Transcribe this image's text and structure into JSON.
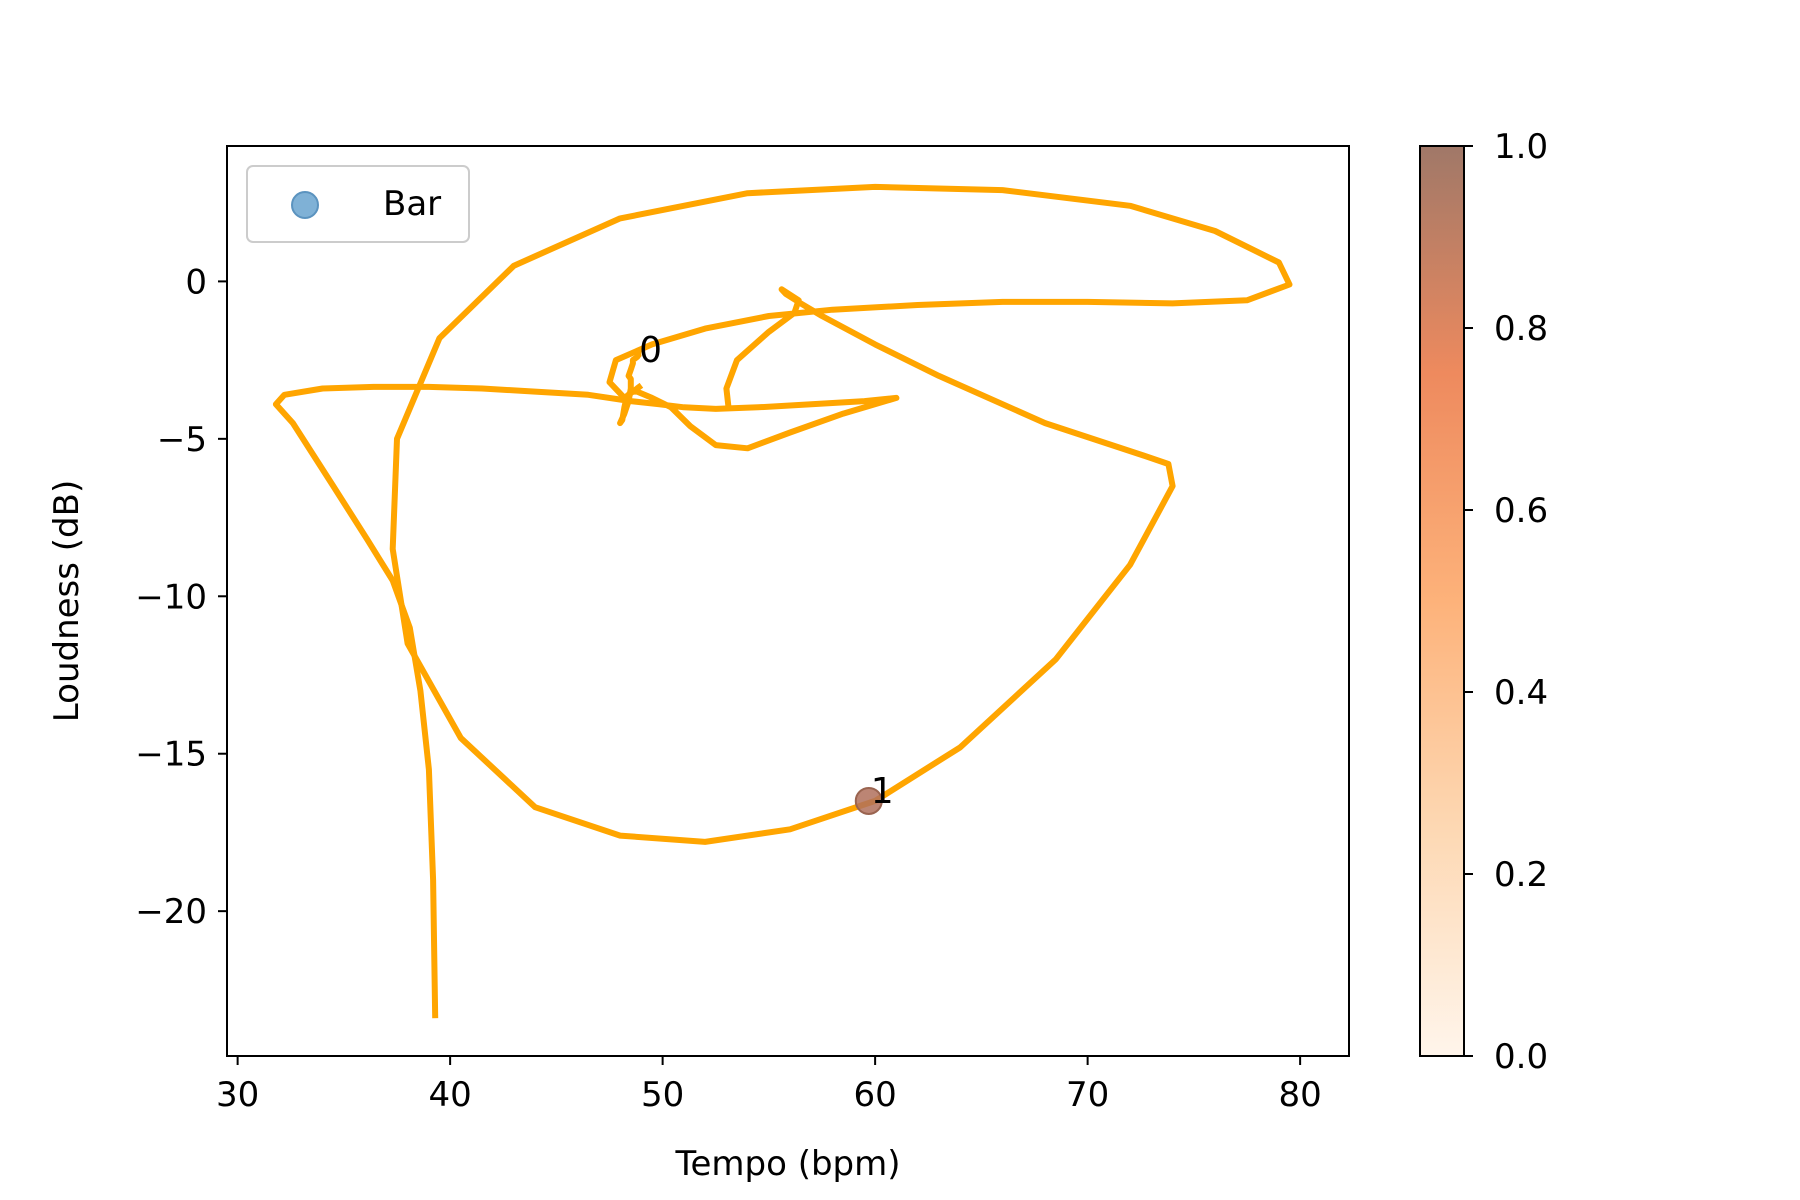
{
  "chart_data": {
    "type": "line",
    "xlabel": "Tempo (bpm)",
    "ylabel": "Loudness (dB)",
    "xlim": [
      29.5,
      82.3
    ],
    "ylim": [
      -24.6,
      4.3
    ],
    "xticks": [
      30,
      40,
      50,
      60,
      70,
      80
    ],
    "yticks": [
      0,
      -5,
      -10,
      -15,
      -20
    ],
    "grid": false,
    "line_color": "#FFA500",
    "series": [
      {
        "type": "line",
        "x": [
          39.3,
          39.2,
          39.0,
          38.6,
          38.1,
          37.3,
          36.1,
          34.5,
          32.6,
          31.8,
          32.2,
          34.0,
          36.4,
          39.0,
          41.5,
          44.0,
          46.5,
          48.5,
          49.8,
          51.0,
          52.5,
          54.5,
          57.0,
          59.5,
          61.0,
          58.5,
          56.0,
          54.0,
          52.5,
          51.3,
          50.4,
          49.5,
          48.8,
          48.5,
          48.3,
          48.2,
          48.1,
          48.0,
          48.2,
          48.4,
          48.5,
          48.5,
          48.4,
          48.5,
          48.6,
          48.6,
          48.8,
          48.9,
          49.0
        ],
        "y": [
          -23.4,
          -19.0,
          -15.5,
          -13.0,
          -11.0,
          -9.5,
          -8.2,
          -6.5,
          -4.5,
          -3.9,
          -3.6,
          -3.4,
          -3.35,
          -3.35,
          -3.4,
          -3.5,
          -3.6,
          -3.8,
          -3.9,
          -4.0,
          -4.05,
          -4.0,
          -3.9,
          -3.8,
          -3.7,
          -4.2,
          -4.8,
          -5.3,
          -5.2,
          -4.6,
          -4.0,
          -3.7,
          -3.5,
          -3.5,
          -3.7,
          -4.0,
          -4.4,
          -4.5,
          -4.2,
          -3.8,
          -3.4,
          -3.1,
          -3.0,
          -2.8,
          -2.6,
          -2.5,
          -2.4,
          -2.3,
          -2.3
        ]
      },
      {
        "type": "line",
        "x": [
          49.0,
          48.2,
          47.5,
          47.8,
          49.5,
          52.0,
          55.0,
          58.0,
          62.0,
          66.0,
          70.0,
          74.0,
          77.5,
          79.5,
          79.0,
          76.0,
          72.0,
          66.0,
          60.0,
          54.0,
          48.0,
          43.0,
          39.5,
          37.5,
          37.3,
          38.0,
          40.5,
          44.0,
          48.0,
          52.0,
          56.0,
          60.0,
          64.0,
          68.5,
          72.0,
          74.0,
          73.8,
          72.5,
          68.0,
          63.0,
          60.0,
          57.5,
          56.5,
          55.8,
          55.6,
          56.4,
          56.2,
          55.0,
          53.5,
          53.0,
          53.1
        ],
        "y": [
          -3.3,
          -3.7,
          -3.2,
          -2.5,
          -2.0,
          -1.5,
          -1.1,
          -0.9,
          -0.75,
          -0.65,
          -0.65,
          -0.7,
          -0.6,
          -0.1,
          0.6,
          1.6,
          2.4,
          2.9,
          3.0,
          2.8,
          2.0,
          0.5,
          -1.8,
          -5.0,
          -8.5,
          -11.5,
          -14.5,
          -16.7,
          -17.6,
          -17.8,
          -17.4,
          -16.5,
          -14.8,
          -12.0,
          -9.0,
          -6.5,
          -5.8,
          -5.5,
          -4.5,
          -3.0,
          -2.0,
          -1.1,
          -0.7,
          -0.4,
          -0.25,
          -0.6,
          -1.0,
          -1.6,
          -2.5,
          -3.4,
          -4.0
        ]
      }
    ],
    "points": [
      {
        "label": "0",
        "x": 48.8,
        "y": -2.5,
        "color": "#FFA500"
      },
      {
        "label": "1",
        "x": 59.7,
        "y": -16.5,
        "color": "#B0705C"
      }
    ],
    "legend": {
      "position": "upper-left",
      "entries": [
        {
          "label": "Bar",
          "color": "#7FB1D6"
        }
      ]
    },
    "colorbar": {
      "range": [
        0.0,
        1.0
      ],
      "ticks": [
        "0.0",
        "0.2",
        "0.4",
        "0.6",
        "0.8",
        "1.0"
      ],
      "colormap": "oranges-alpha"
    }
  }
}
